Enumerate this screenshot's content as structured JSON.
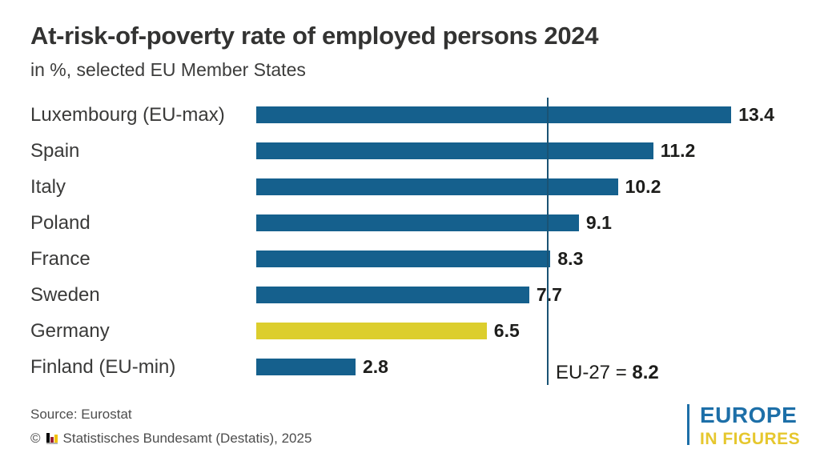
{
  "header": {
    "title": "At-risk-of-poverty rate of employed persons 2024",
    "subtitle": "in %, selected EU Member States"
  },
  "chart_data": {
    "type": "bar",
    "orientation": "horizontal",
    "title": "At-risk-of-poverty rate of employed persons 2024",
    "unit": "%",
    "categories": [
      "Luxembourg (EU-max)",
      "Spain",
      "Italy",
      "Poland",
      "France",
      "Sweden",
      "Germany",
      "Finland (EU-min)"
    ],
    "values": [
      13.4,
      11.2,
      10.2,
      9.1,
      8.3,
      7.7,
      6.5,
      2.8
    ],
    "highlight_index": 6,
    "reference_line": {
      "label_prefix": "EU-27 = ",
      "value": "8.2"
    },
    "xlim": [
      0,
      15
    ],
    "grid": false,
    "legend": false,
    "colors": {
      "bar": "#15608d",
      "highlight": "#dcce2d",
      "reference_line": "#1a5374"
    }
  },
  "footer": {
    "source": "Source: Eurostat",
    "copyright_prefix": "©",
    "copyright_text": "Statistisches Bundesamt (Destatis), 2025"
  },
  "logo": {
    "line1": "EUROPE",
    "line2": "IN FIGURES",
    "colors": {
      "blue": "#1d6fa8",
      "yellow": "#e6c72e"
    }
  }
}
